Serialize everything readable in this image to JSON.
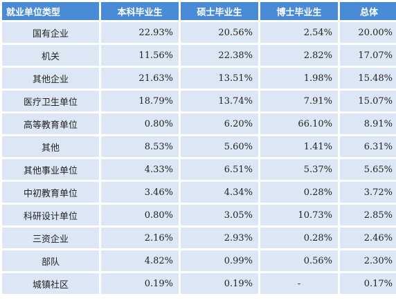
{
  "table": {
    "headers": [
      "就业单位类型",
      "本科毕业生",
      "硕士毕业生",
      "博士毕业生",
      "总体"
    ],
    "rows": [
      [
        "国有企业",
        "22.93%",
        "20.56%",
        "2.54%",
        "20.00%"
      ],
      [
        "机关",
        "11.56%",
        "22.38%",
        "2.82%",
        "17.07%"
      ],
      [
        "其他企业",
        "21.63%",
        "13.51%",
        "1.98%",
        "15.48%"
      ],
      [
        "医疗卫生单位",
        "18.79%",
        "13.74%",
        "7.91%",
        "15.07%"
      ],
      [
        "高等教育单位",
        "0.80%",
        "6.20%",
        "66.10%",
        "8.91%"
      ],
      [
        "其他",
        "8.53%",
        "5.60%",
        "1.41%",
        "6.31%"
      ],
      [
        "其他事业单位",
        "4.33%",
        "6.51%",
        "5.37%",
        "5.65%"
      ],
      [
        "中初教育单位",
        "3.46%",
        "4.34%",
        "0.28%",
        "3.72%"
      ],
      [
        "科研设计单位",
        "0.80%",
        "3.05%",
        "10.73%",
        "2.85%"
      ],
      [
        "三资企业",
        "2.16%",
        "2.93%",
        "0.28%",
        "2.46%"
      ],
      [
        "部队",
        "4.82%",
        "0.99%",
        "0.56%",
        "2.30%"
      ],
      [
        "城镇社区",
        "0.19%",
        "0.19%",
        "-",
        "0.17%"
      ]
    ]
  },
  "colors": {
    "header_bg": "#4a8bd8",
    "header_text": "#ffffff",
    "cell_bg": "#dde6f4",
    "cell_text": "#222222"
  }
}
